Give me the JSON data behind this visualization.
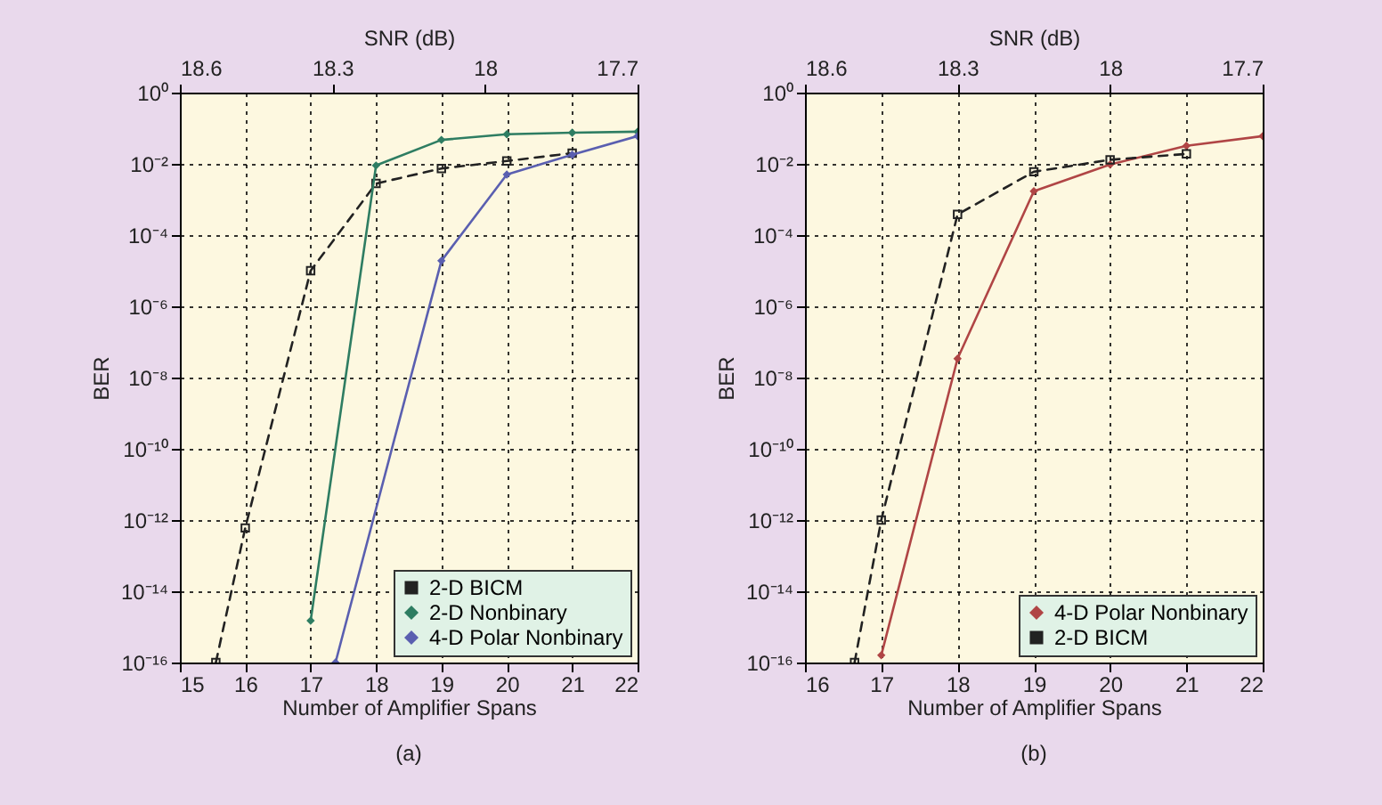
{
  "chart_data": [
    {
      "type": "line",
      "xlabel": "Number of Amplifier Spans",
      "ylabel": "BER",
      "x2label": "SNR (dB)",
      "annotations": [
        "(a)"
      ],
      "xlim": [
        15,
        22
      ],
      "xticks": [
        15,
        16,
        17,
        18,
        19,
        20,
        21,
        22
      ],
      "x2lim": [
        18.6,
        17.7
      ],
      "x2ticks": [
        18.6,
        18.3,
        18,
        17.7
      ],
      "ylim": [
        1e-16,
        1
      ],
      "yticks": [
        {
          "value": 1,
          "label": "10⁰"
        },
        {
          "value": 0.01,
          "label": "10⁻²"
        },
        {
          "value": 0.0001,
          "label": "10⁻⁴"
        },
        {
          "value": 1e-06,
          "label": "10⁻⁶"
        },
        {
          "value": 1e-08,
          "label": "10⁻⁸"
        },
        {
          "value": 1e-10,
          "label": "10⁻¹⁰"
        },
        {
          "value": 1e-12,
          "label": "10⁻¹²"
        },
        {
          "value": 1e-14,
          "label": "10⁻¹⁴"
        },
        {
          "value": 1e-16,
          "label": "10⁻¹⁶"
        }
      ],
      "log": true,
      "grid": true,
      "legend": "bottom right",
      "series": [
        {
          "name": "2-D BICM",
          "color": "#222222",
          "line_style": "dashed",
          "marker": "square",
          "x": [
            15.55,
            16,
            17,
            18,
            19,
            20,
            21
          ],
          "values": [
            1e-16,
            6e-13,
            1e-05,
            0.0028,
            0.0074,
            0.012,
            0.02
          ]
        },
        {
          "name": "2-D Nonbinary",
          "color": "#2e7d62",
          "line_style": "solid",
          "marker": "diamond",
          "x": [
            17,
            18,
            19,
            20,
            21,
            22
          ],
          "values": [
            1.5e-15,
            0.009,
            0.047,
            0.068,
            0.075,
            0.08
          ]
        },
        {
          "name": "4-D Polar Nonbinary",
          "color": "#5a5fb0",
          "line_style": "solid",
          "marker": "diamond",
          "x": [
            17.38,
            19,
            20,
            21,
            22
          ],
          "values": [
            1e-16,
            1.9e-05,
            0.005,
            0.018,
            0.06
          ]
        }
      ]
    },
    {
      "type": "line",
      "xlabel": "Number of Amplifier Spans",
      "ylabel": "BER",
      "x2label": "SNR (dB)",
      "annotations": [
        "(b)"
      ],
      "xlim": [
        16,
        22
      ],
      "xticks": [
        16,
        17,
        18,
        19,
        20,
        21,
        22
      ],
      "x2lim": [
        18.6,
        17.7
      ],
      "x2ticks": [
        18.6,
        18.3,
        18,
        17.7
      ],
      "ylim": [
        1e-16,
        1
      ],
      "yticks": [
        {
          "value": 1,
          "label": "10⁰"
        },
        {
          "value": 0.01,
          "label": "10⁻²"
        },
        {
          "value": 0.0001,
          "label": "10⁻⁴"
        },
        {
          "value": 1e-06,
          "label": "10⁻⁶"
        },
        {
          "value": 1e-08,
          "label": "10⁻⁸"
        },
        {
          "value": 1e-10,
          "label": "10⁻¹⁰"
        },
        {
          "value": 1e-12,
          "label": "10⁻¹²"
        },
        {
          "value": 1e-14,
          "label": "10⁻¹⁴"
        },
        {
          "value": 1e-16,
          "label": "10⁻¹⁶"
        }
      ],
      "log": true,
      "grid": true,
      "legend": "bottom right",
      "series": [
        {
          "name": "4-D Polar Nonbinary",
          "color": "#b04545",
          "line_style": "solid",
          "marker": "diamond",
          "x": [
            17,
            18,
            19,
            20,
            21,
            22
          ],
          "values": [
            1.6e-16,
            3.4e-08,
            0.0017,
            0.0096,
            0.032,
            0.06
          ]
        },
        {
          "name": "2-D BICM",
          "color": "#222222",
          "line_style": "dashed",
          "marker": "square",
          "x": [
            16.65,
            17,
            18,
            19,
            20,
            21
          ],
          "values": [
            1e-16,
            1e-12,
            0.00038,
            0.006,
            0.013,
            0.019
          ]
        }
      ]
    }
  ]
}
